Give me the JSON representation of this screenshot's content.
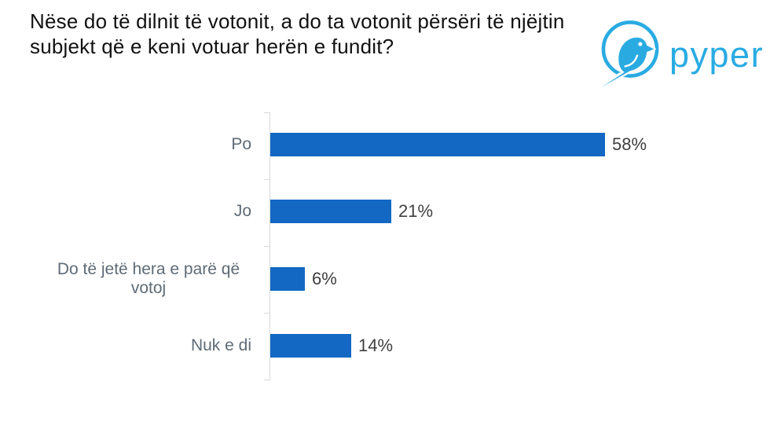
{
  "header": {
    "title": "Nëse do të dilnit të votonit, a do ta votonit përsëri të njëjtin subjekt që e keni votuar herën e fundit?",
    "logo": {
      "text": "pyper",
      "color": "#29ABE2"
    }
  },
  "colors": {
    "bar": "#1268C3",
    "axis": "#D9D9D9",
    "category_label": "#5F6B76",
    "value_label": "#404040",
    "title": "#111111"
  },
  "chart_data": {
    "type": "bar",
    "orientation": "horizontal",
    "title": "Nëse do të dilnit të votonit, a do ta votonit përsëri të njëjtin subjekt që e keni votuar herën e fundit?",
    "categories": [
      "Po",
      "Jo",
      "Do të jetë hera e parë që votoj",
      "Nuk e di"
    ],
    "values": [
      58,
      21,
      6,
      14
    ],
    "value_labels": [
      "58%",
      "21%",
      "6%",
      "14%"
    ],
    "value_suffix": "%",
    "xlabel": "",
    "ylabel": "",
    "xlim": [
      0,
      60
    ],
    "grid": false,
    "legend": false,
    "bar_color": "#1268C3"
  }
}
